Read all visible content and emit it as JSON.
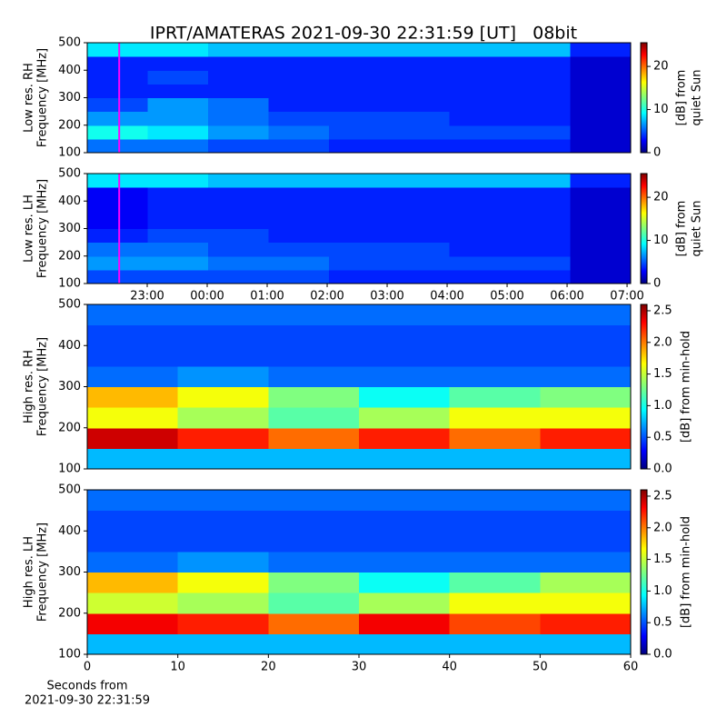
{
  "title": "IPRT/AMATERAS 2021-09-30 22:31:59 [UT]   08bit",
  "chart_data": [
    {
      "type": "heatmap",
      "ylabel": [
        "Low res. RH",
        "Frequency [MHz]"
      ],
      "xlim": [
        22,
        31.06
      ],
      "ylim": [
        100,
        500
      ],
      "yticks": [
        100,
        200,
        300,
        400,
        500
      ],
      "marker_x": 22.533,
      "marker_color": "#ff00ff",
      "clim": [
        0,
        25.5
      ],
      "cticks": [
        0,
        10,
        20
      ],
      "clabel": [
        "[dB] from",
        "quiet Sun"
      ],
      "z": [
        [
          6,
          6,
          5,
          5,
          4,
          4,
          4,
          4,
          2
        ],
        [
          10,
          9,
          7,
          6,
          5,
          5,
          5,
          5,
          2
        ],
        [
          7,
          7,
          6,
          5,
          5,
          5,
          4,
          4,
          2
        ],
        [
          5,
          7,
          6,
          4,
          4,
          4,
          4,
          4,
          2
        ],
        [
          4,
          4,
          4,
          4,
          4,
          4,
          4,
          4,
          2
        ],
        [
          4,
          5,
          4,
          4,
          4,
          4,
          4,
          4,
          2
        ],
        [
          4,
          4,
          4,
          4,
          4,
          4,
          4,
          4,
          2
        ],
        [
          9,
          9,
          8,
          8,
          8,
          8,
          8,
          8,
          4
        ]
      ]
    },
    {
      "type": "heatmap",
      "ylabel": [
        "Low res. LH",
        "Frequency [MHz]"
      ],
      "xlim": [
        22,
        31.06
      ],
      "ylim": [
        100,
        500
      ],
      "yticks": [
        100,
        200,
        300,
        400,
        500
      ],
      "xticks": [
        {
          "value": 23,
          "label": "23:00"
        },
        {
          "value": 24,
          "label": "00:00"
        },
        {
          "value": 25,
          "label": "01:00"
        },
        {
          "value": 26,
          "label": "02:00"
        },
        {
          "value": 27,
          "label": "03:00"
        },
        {
          "value": 28,
          "label": "04:00"
        },
        {
          "value": 29,
          "label": "05:00"
        },
        {
          "value": 30,
          "label": "06:00"
        },
        {
          "value": 31,
          "label": "07:00"
        }
      ],
      "marker_x": 22.533,
      "marker_color": "#ff00ff",
      "clim": [
        0,
        25.5
      ],
      "cticks": [
        0,
        10,
        20
      ],
      "clabel": [
        "[dB] from",
        "quiet Sun"
      ],
      "z": [
        [
          5,
          5,
          5,
          5,
          4,
          4,
          4,
          4,
          2
        ],
        [
          7,
          7,
          6,
          6,
          5,
          5,
          5,
          5,
          2
        ],
        [
          6,
          6,
          5,
          5,
          5,
          5,
          4,
          4,
          2
        ],
        [
          4,
          5,
          5,
          4,
          4,
          4,
          4,
          4,
          2
        ],
        [
          3,
          4,
          4,
          4,
          4,
          4,
          4,
          4,
          2
        ],
        [
          3,
          4,
          4,
          4,
          4,
          4,
          4,
          4,
          2
        ],
        [
          3,
          4,
          4,
          4,
          4,
          4,
          4,
          4,
          2
        ],
        [
          9,
          9,
          8,
          8,
          8,
          8,
          8,
          8,
          4
        ]
      ]
    },
    {
      "type": "heatmap",
      "ylabel": [
        "High res. RH",
        "Frequency [MHz]"
      ],
      "xlim": [
        0,
        60
      ],
      "ylim": [
        100,
        500
      ],
      "yticks": [
        100,
        200,
        300,
        400,
        500
      ],
      "clim": [
        0,
        2.6
      ],
      "cticks": [
        {
          "value": 0,
          "label": "0.0"
        },
        {
          "value": 0.5,
          "label": "0.5"
        },
        {
          "value": 1,
          "label": "1.0"
        },
        {
          "value": 1.5,
          "label": "1.5"
        },
        {
          "value": 2,
          "label": "2.0"
        },
        {
          "value": 2.5,
          "label": "2.5"
        }
      ],
      "clabel": [
        "[dB] from min-hold"
      ],
      "z": [
        [
          0.8,
          0.8,
          0.8,
          0.8,
          0.8,
          0.8
        ],
        [
          2.4,
          2.2,
          2.0,
          2.2,
          2.0,
          2.2
        ],
        [
          1.6,
          1.4,
          1.2,
          1.4,
          1.6,
          1.6
        ],
        [
          1.8,
          1.6,
          1.3,
          1.0,
          1.2,
          1.3
        ],
        [
          0.6,
          0.7,
          0.6,
          0.6,
          0.6,
          0.6
        ],
        [
          0.5,
          0.5,
          0.5,
          0.5,
          0.5,
          0.5
        ],
        [
          0.5,
          0.5,
          0.5,
          0.5,
          0.5,
          0.5
        ],
        [
          0.6,
          0.6,
          0.6,
          0.6,
          0.6,
          0.6
        ]
      ]
    },
    {
      "type": "heatmap",
      "ylabel": [
        "High res. LH",
        "Frequency [MHz]"
      ],
      "xlim": [
        0,
        60
      ],
      "ylim": [
        100,
        500
      ],
      "yticks": [
        100,
        200,
        300,
        400,
        500
      ],
      "xticks": [
        0,
        10,
        20,
        30,
        40,
        50,
        60
      ],
      "xlabel": [
        "Seconds from",
        "2021-09-30 22:31:59"
      ],
      "clim": [
        0,
        2.6
      ],
      "cticks": [
        {
          "value": 0,
          "label": "0.0"
        },
        {
          "value": 0.5,
          "label": "0.5"
        },
        {
          "value": 1,
          "label": "1.0"
        },
        {
          "value": 1.5,
          "label": "1.5"
        },
        {
          "value": 2,
          "label": "2.0"
        },
        {
          "value": 2.5,
          "label": "2.5"
        }
      ],
      "clabel": [
        "[dB] from min-hold"
      ],
      "z": [
        [
          0.8,
          0.8,
          0.8,
          0.8,
          0.8,
          0.8
        ],
        [
          2.3,
          2.2,
          2.0,
          2.3,
          2.1,
          2.2
        ],
        [
          1.5,
          1.4,
          1.2,
          1.4,
          1.6,
          1.6
        ],
        [
          1.8,
          1.6,
          1.3,
          1.0,
          1.2,
          1.4
        ],
        [
          0.6,
          0.7,
          0.6,
          0.6,
          0.6,
          0.6
        ],
        [
          0.5,
          0.5,
          0.5,
          0.5,
          0.5,
          0.5
        ],
        [
          0.5,
          0.5,
          0.5,
          0.5,
          0.5,
          0.5
        ],
        [
          0.6,
          0.6,
          0.6,
          0.6,
          0.6,
          0.6
        ]
      ]
    }
  ]
}
